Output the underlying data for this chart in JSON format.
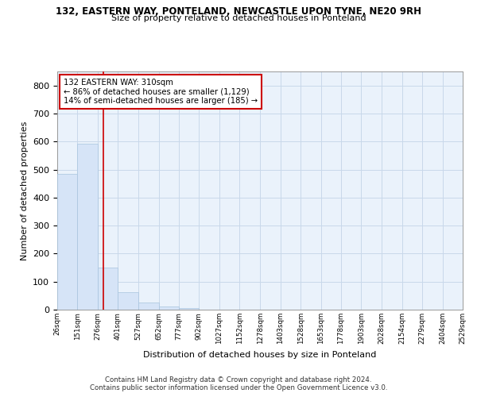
{
  "title1": "132, EASTERN WAY, PONTELAND, NEWCASTLE UPON TYNE, NE20 9RH",
  "title2": "Size of property relative to detached houses in Ponteland",
  "xlabel": "Distribution of detached houses by size in Ponteland",
  "ylabel": "Number of detached properties",
  "bin_edges": [
    26,
    151,
    276,
    401,
    527,
    652,
    777,
    902,
    1027,
    1152,
    1278,
    1403,
    1528,
    1653,
    1778,
    1903,
    2028,
    2154,
    2279,
    2404,
    2529
  ],
  "bar_heights": [
    485,
    593,
    150,
    62,
    25,
    10,
    5,
    0,
    0,
    0,
    0,
    0,
    0,
    0,
    0,
    0,
    0,
    0,
    0,
    0
  ],
  "bar_facecolor": "#d6e4f7",
  "bar_edgecolor": "#a8c4de",
  "grid_color": "#c8d8ea",
  "background_color": "#eaf2fb",
  "vline_x": 310,
  "vline_color": "#cc0000",
  "annotation_line1": "132 EASTERN WAY: 310sqm",
  "annotation_line2": "← 86% of detached houses are smaller (1,129)",
  "annotation_line3": "14% of semi-detached houses are larger (185) →",
  "annotation_box_color": "#ffffff",
  "annotation_box_edge": "#cc0000",
  "ylim": [
    0,
    850
  ],
  "yticks": [
    0,
    100,
    200,
    300,
    400,
    500,
    600,
    700,
    800
  ],
  "footnote1": "Contains HM Land Registry data © Crown copyright and database right 2024.",
  "footnote2": "Contains public sector information licensed under the Open Government Licence v3.0."
}
